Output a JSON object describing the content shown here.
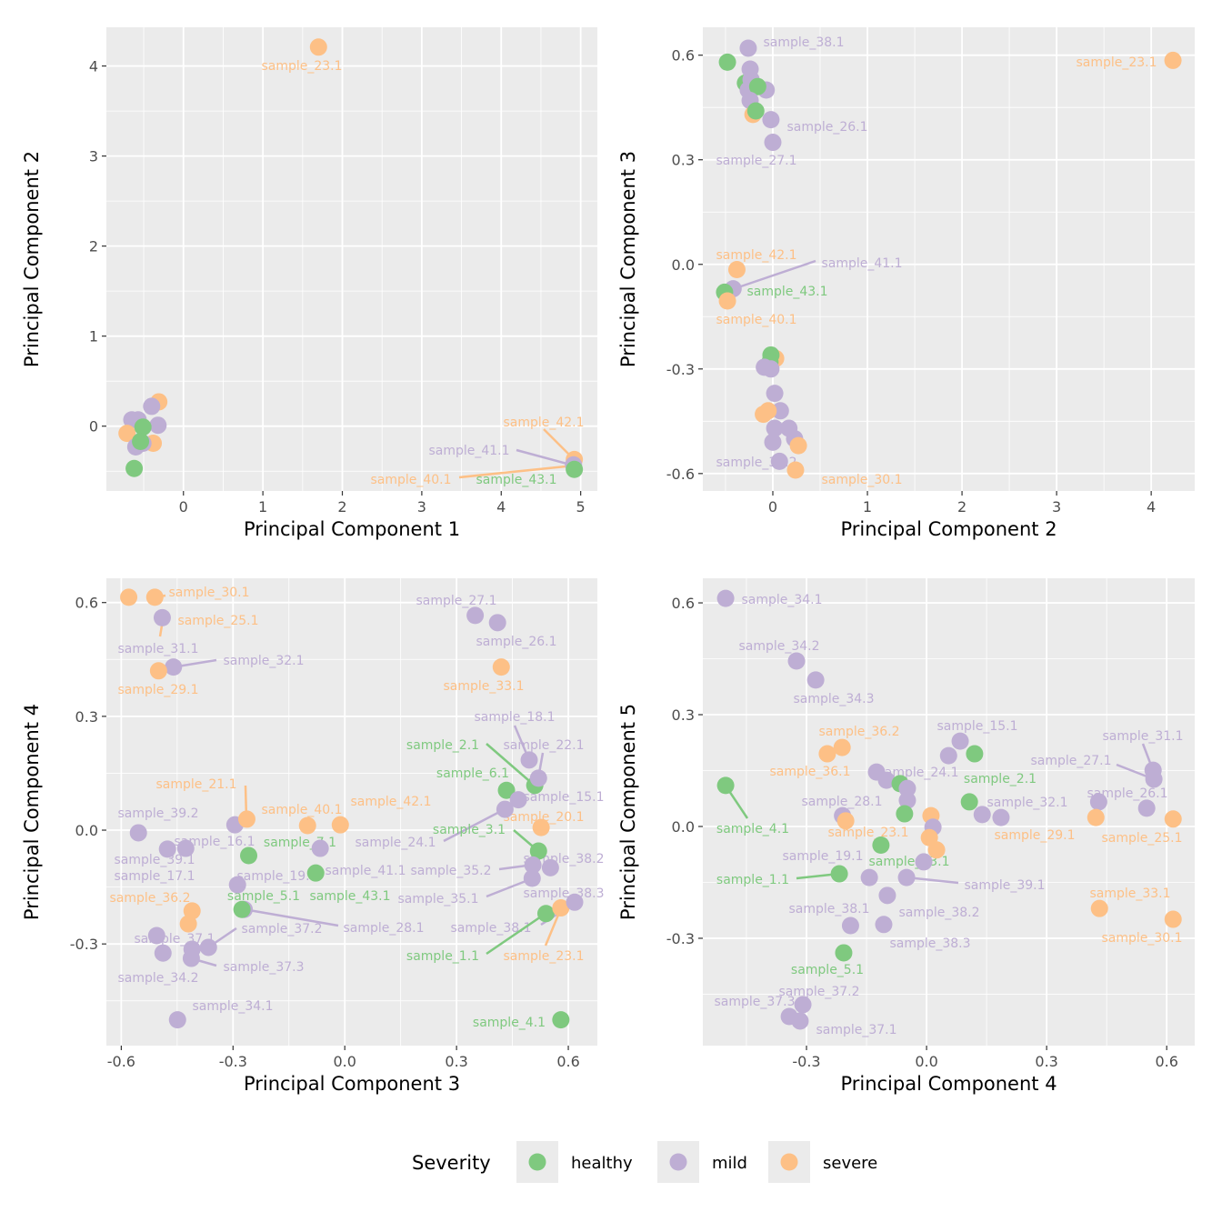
{
  "colors": {
    "healthy": "#7FC97F",
    "mild": "#BEAED4",
    "severe": "#FDC086"
  },
  "legend": {
    "title": "Severity",
    "items": [
      {
        "key": "healthy",
        "label": "healthy"
      },
      {
        "key": "mild",
        "label": "mild"
      },
      {
        "key": "severe",
        "label": "severe"
      }
    ]
  },
  "chart_data": [
    {
      "type": "scatter",
      "xlabel": "Principal Component 1",
      "ylabel": "Principal Component 2",
      "xlim": [
        -0.97,
        5.21
      ],
      "ylim": [
        -0.72,
        4.43
      ],
      "xticks": [
        0,
        1,
        2,
        3,
        4,
        5
      ],
      "xtick_labels": [
        "0",
        "1",
        "2",
        "3",
        "4",
        "5"
      ],
      "yticks": [
        0,
        1,
        2,
        3,
        4
      ],
      "ytick_labels": [
        "0",
        "1",
        "2",
        "3",
        "4"
      ],
      "points": [
        [
          1.7,
          4.21,
          "severe"
        ],
        [
          4.92,
          -0.37,
          "severe"
        ],
        [
          4.91,
          -0.43,
          "mild"
        ],
        [
          4.92,
          -0.48,
          "healthy"
        ],
        [
          -0.62,
          -0.47,
          "healthy"
        ],
        [
          -0.31,
          0.27,
          "severe"
        ],
        [
          -0.4,
          0.22,
          "mild"
        ],
        [
          -0.32,
          0.01,
          "mild"
        ],
        [
          -0.38,
          -0.19,
          "severe"
        ],
        [
          -0.65,
          0.07,
          "mild"
        ],
        [
          -0.57,
          0.07,
          "mild"
        ],
        [
          -0.71,
          -0.08,
          "severe"
        ],
        [
          -0.6,
          -0.23,
          "mild"
        ],
        [
          -0.51,
          -0.19,
          "mild"
        ],
        [
          -0.51,
          -0.01,
          "healthy"
        ],
        [
          -0.54,
          -0.17,
          "healthy"
        ]
      ],
      "labels": [
        [
          "sample_23.1",
          "severe"
        ],
        [
          "sample_42.1",
          "severe"
        ],
        [
          "sample_41.1",
          "mild"
        ],
        [
          "sample_40.1",
          "severe"
        ],
        [
          "sample_43.1",
          "healthy"
        ]
      ]
    },
    {
      "type": "scatter",
      "xlabel": "Principal Component 2",
      "ylabel": "Principal Component 3",
      "xlim": [
        -0.74,
        4.46
      ],
      "ylim": [
        -0.65,
        0.68
      ],
      "xticks": [
        0,
        1,
        2,
        3,
        4
      ],
      "xtick_labels": [
        "0",
        "1",
        "2",
        "3",
        "4"
      ],
      "yticks": [
        -0.6,
        -0.3,
        0,
        0.3,
        0.6
      ],
      "ytick_labels": [
        "-0.6",
        "-0.3",
        "0.0",
        "0.3",
        "0.6"
      ],
      "points": [
        [
          4.23,
          0.585,
          "severe"
        ],
        [
          -0.48,
          0.58,
          "healthy"
        ],
        [
          -0.26,
          0.62,
          "mild"
        ],
        [
          -0.29,
          0.52,
          "healthy"
        ],
        [
          -0.24,
          0.56,
          "mild"
        ],
        [
          -0.23,
          0.53,
          "mild"
        ],
        [
          -0.26,
          0.5,
          "mild"
        ],
        [
          -0.07,
          0.5,
          "mild"
        ],
        [
          -0.16,
          0.51,
          "healthy"
        ],
        [
          -0.24,
          0.47,
          "mild"
        ],
        [
          -0.21,
          0.43,
          "severe"
        ],
        [
          -0.18,
          0.44,
          "healthy"
        ],
        [
          -0.02,
          0.415,
          "mild"
        ],
        [
          0,
          0.35,
          "mild"
        ],
        [
          -0.38,
          -0.015,
          "severe"
        ],
        [
          -0.42,
          -0.07,
          "mild"
        ],
        [
          -0.51,
          -0.08,
          "healthy"
        ],
        [
          -0.48,
          -0.105,
          "severe"
        ],
        [
          0.03,
          -0.27,
          "severe"
        ],
        [
          -0.02,
          -0.26,
          "healthy"
        ],
        [
          -0.03,
          -0.28,
          "healthy"
        ],
        [
          -0.09,
          -0.295,
          "mild"
        ],
        [
          -0.02,
          -0.3,
          "mild"
        ],
        [
          0.02,
          -0.37,
          "mild"
        ],
        [
          0.08,
          -0.42,
          "mild"
        ],
        [
          -0.1,
          -0.43,
          "severe"
        ],
        [
          -0.05,
          -0.42,
          "severe"
        ],
        [
          0.02,
          -0.47,
          "mild"
        ],
        [
          0.17,
          -0.47,
          "mild"
        ],
        [
          0.23,
          -0.5,
          "mild"
        ],
        [
          0.27,
          -0.52,
          "severe"
        ],
        [
          0,
          -0.51,
          "mild"
        ],
        [
          0.07,
          -0.565,
          "mild"
        ],
        [
          0.24,
          -0.59,
          "severe"
        ]
      ],
      "labels": [
        [
          "sample_38.1",
          "mild"
        ],
        [
          "sample_23.1",
          "severe"
        ],
        [
          "sample_26.1",
          "mild"
        ],
        [
          "sample_27.1",
          "mild"
        ],
        [
          "sample_42.1",
          "severe"
        ],
        [
          "sample_41.1",
          "mild"
        ],
        [
          "sample_43.1",
          "healthy"
        ],
        [
          "sample_40.1",
          "severe"
        ],
        [
          "sample_39.2",
          "mild"
        ],
        [
          "sample_30.1",
          "severe"
        ]
      ]
    },
    {
      "type": "scatter",
      "xlabel": "Principal Component 3",
      "ylabel": "Principal Component 4",
      "xlim": [
        -0.64,
        0.678
      ],
      "ylim": [
        -0.568,
        0.664
      ],
      "xticks": [
        -0.6,
        -0.3,
        0,
        0.3,
        0.6
      ],
      "xtick_labels": [
        "-0.6",
        "-0.3",
        "0.0",
        "0.3",
        "0.6"
      ],
      "yticks": [
        -0.3,
        0,
        0.3,
        0.6
      ],
      "ytick_labels": [
        "-0.3",
        "0.0",
        "0.3",
        "0.6"
      ],
      "points": [
        [
          -0.58,
          0.614,
          "severe"
        ],
        [
          -0.51,
          0.614,
          "severe"
        ],
        [
          -0.49,
          0.56,
          "mild"
        ],
        [
          -0.46,
          0.43,
          "mild"
        ],
        [
          -0.5,
          0.42,
          "severe"
        ],
        [
          0.35,
          0.566,
          "mild"
        ],
        [
          0.41,
          0.547,
          "mild"
        ],
        [
          0.42,
          0.43,
          "severe"
        ],
        [
          0.495,
          0.185,
          "mild"
        ],
        [
          0.51,
          0.118,
          "healthy"
        ],
        [
          0.52,
          0.137,
          "mild"
        ],
        [
          0.434,
          0.105,
          "healthy"
        ],
        [
          0.466,
          0.08,
          "mild"
        ],
        [
          0.43,
          0.055,
          "mild"
        ],
        [
          0.527,
          0.007,
          "severe"
        ],
        [
          0.52,
          -0.055,
          "healthy"
        ],
        [
          0.505,
          -0.092,
          "mild"
        ],
        [
          0.552,
          -0.099,
          "mild"
        ],
        [
          0.503,
          -0.127,
          "mild"
        ],
        [
          0.54,
          -0.22,
          "healthy"
        ],
        [
          0.58,
          -0.205,
          "severe"
        ],
        [
          0.617,
          -0.19,
          "mild"
        ],
        [
          0.58,
          -0.5,
          "healthy"
        ],
        [
          -0.554,
          -0.007,
          "mild"
        ],
        [
          -0.476,
          -0.05,
          "mild"
        ],
        [
          -0.427,
          -0.048,
          "mild"
        ],
        [
          -0.295,
          0.014,
          "mild"
        ],
        [
          -0.263,
          0.029,
          "severe"
        ],
        [
          -0.258,
          -0.067,
          "healthy"
        ],
        [
          -0.1,
          0.012,
          "severe"
        ],
        [
          -0.012,
          0.014,
          "severe"
        ],
        [
          -0.066,
          -0.048,
          "mild"
        ],
        [
          -0.078,
          -0.113,
          "healthy"
        ],
        [
          -0.288,
          -0.144,
          "mild"
        ],
        [
          -0.27,
          -0.209,
          "mild"
        ],
        [
          -0.276,
          -0.209,
          "healthy"
        ],
        [
          -0.41,
          -0.213,
          "severe"
        ],
        [
          -0.42,
          -0.247,
          "severe"
        ],
        [
          -0.505,
          -0.278,
          "mild"
        ],
        [
          -0.488,
          -0.324,
          "mild"
        ],
        [
          -0.41,
          -0.314,
          "mild"
        ],
        [
          -0.366,
          -0.309,
          "mild"
        ],
        [
          -0.412,
          -0.338,
          "mild"
        ],
        [
          -0.449,
          -0.5,
          "mild"
        ]
      ],
      "labels": [
        [
          "sample_30.1",
          "severe"
        ],
        [
          "sample_25.1",
          "severe"
        ],
        [
          "sample_31.1",
          "mild"
        ],
        [
          "sample_32.1",
          "mild"
        ],
        [
          "sample_29.1",
          "severe"
        ],
        [
          "sample_27.1",
          "mild"
        ],
        [
          "sample_26.1",
          "mild"
        ],
        [
          "sample_33.1",
          "severe"
        ],
        [
          "sample_18.1",
          "mild"
        ],
        [
          "sample_22.1",
          "mild"
        ],
        [
          "sample_2.1",
          "healthy"
        ],
        [
          "sample_6.1",
          "healthy"
        ],
        [
          "sample_15.1",
          "mild"
        ],
        [
          "sample_24.1",
          "mild"
        ],
        [
          "sample_20.1",
          "severe"
        ],
        [
          "sample_3.1",
          "healthy"
        ],
        [
          "sample_35.2",
          "mild"
        ],
        [
          "sample_38.2",
          "mild"
        ],
        [
          "sample_35.1",
          "mild"
        ],
        [
          "sample_38.3",
          "mild"
        ],
        [
          "sample_38.1",
          "mild"
        ],
        [
          "sample_1.1",
          "healthy"
        ],
        [
          "sample_23.1",
          "severe"
        ],
        [
          "sample_4.1",
          "healthy"
        ],
        [
          "sample_39.2",
          "mild"
        ],
        [
          "sample_16.1",
          "mild"
        ],
        [
          "sample_21.1",
          "severe"
        ],
        [
          "sample_7.1",
          "healthy"
        ],
        [
          "sample_40.1",
          "severe"
        ],
        [
          "sample_42.1",
          "severe"
        ],
        [
          "sample_41.1",
          "mild"
        ],
        [
          "sample_43.1",
          "healthy"
        ],
        [
          "sample_39.1",
          "mild"
        ],
        [
          "sample_17.1",
          "mild"
        ],
        [
          "sample_19.1",
          "mild"
        ],
        [
          "sample_5.1",
          "healthy"
        ],
        [
          "sample_28.1",
          "mild"
        ],
        [
          "sample_36.2",
          "severe"
        ],
        [
          "sample_37.1",
          "mild"
        ],
        [
          "sample_34.2",
          "mild"
        ],
        [
          "sample_37.2",
          "mild"
        ],
        [
          "sample_37.3",
          "mild"
        ],
        [
          "sample_34.1",
          "mild"
        ]
      ]
    },
    {
      "type": "scatter",
      "xlabel": "Principal Component 4",
      "ylabel": "Principal Component 5",
      "xlim": [
        -0.559,
        0.67
      ],
      "ylim": [
        -0.588,
        0.666
      ],
      "xticks": [
        -0.3,
        0,
        0.3,
        0.6
      ],
      "xtick_labels": [
        "-0.3",
        "0.0",
        "0.3",
        "0.6"
      ],
      "yticks": [
        -0.3,
        0,
        0.3,
        0.6
      ],
      "ytick_labels": [
        "-0.3",
        "0.0",
        "0.3",
        "0.6"
      ],
      "points": [
        [
          -0.502,
          0.612,
          "mild"
        ],
        [
          -0.325,
          0.444,
          "mild"
        ],
        [
          -0.277,
          0.393,
          "mild"
        ],
        [
          -0.248,
          0.195,
          "severe"
        ],
        [
          -0.211,
          0.212,
          "severe"
        ],
        [
          -0.502,
          0.11,
          "healthy"
        ],
        [
          -0.125,
          0.146,
          "mild"
        ],
        [
          -0.1,
          0.124,
          "mild"
        ],
        [
          -0.066,
          0.115,
          "healthy"
        ],
        [
          -0.048,
          0.102,
          "mild"
        ],
        [
          -0.048,
          0.07,
          "mild"
        ],
        [
          -0.055,
          0.034,
          "healthy"
        ],
        [
          -0.21,
          0.029,
          "mild"
        ],
        [
          -0.202,
          0.015,
          "severe"
        ],
        [
          0.084,
          0.229,
          "mild"
        ],
        [
          0.055,
          0.19,
          "mild"
        ],
        [
          0.12,
          0.195,
          "healthy"
        ],
        [
          0.107,
          0.066,
          "healthy"
        ],
        [
          0.139,
          0.032,
          "mild"
        ],
        [
          0.186,
          0.024,
          "mild"
        ],
        [
          0.011,
          0.029,
          "severe"
        ],
        [
          0.016,
          -0.002,
          "mild"
        ],
        [
          0.007,
          -0.03,
          "severe"
        ],
        [
          0.025,
          -0.063,
          "severe"
        ],
        [
          -0.007,
          -0.095,
          "mild"
        ],
        [
          -0.05,
          -0.137,
          "mild"
        ],
        [
          -0.114,
          -0.05,
          "healthy"
        ],
        [
          -0.218,
          -0.127,
          "healthy"
        ],
        [
          -0.143,
          -0.137,
          "mild"
        ],
        [
          -0.098,
          -0.185,
          "mild"
        ],
        [
          -0.19,
          -0.266,
          "mild"
        ],
        [
          -0.107,
          -0.263,
          "mild"
        ],
        [
          -0.207,
          -0.339,
          "healthy"
        ],
        [
          -0.309,
          -0.478,
          "mild"
        ],
        [
          -0.343,
          -0.51,
          "mild"
        ],
        [
          -0.316,
          -0.522,
          "mild"
        ],
        [
          0.43,
          0.066,
          "mild"
        ],
        [
          0.55,
          0.049,
          "mild"
        ],
        [
          0.566,
          0.151,
          "mild"
        ],
        [
          0.568,
          0.127,
          "mild"
        ],
        [
          0.423,
          0.024,
          "severe"
        ],
        [
          0.616,
          0.02,
          "severe"
        ],
        [
          0.432,
          -0.22,
          "severe"
        ],
        [
          0.616,
          -0.249,
          "severe"
        ]
      ],
      "labels": [
        [
          "sample_34.1",
          "mild"
        ],
        [
          "sample_34.2",
          "mild"
        ],
        [
          "sample_34.3",
          "mild"
        ],
        [
          "sample_36.2",
          "severe"
        ],
        [
          "sample_36.1",
          "severe"
        ],
        [
          "sample_4.1",
          "healthy"
        ],
        [
          "sample_24.1",
          "mild"
        ],
        [
          "sample_28.1",
          "mild"
        ],
        [
          "sample_23.1",
          "severe"
        ],
        [
          "sample_15.1",
          "mild"
        ],
        [
          "sample_2.1",
          "healthy"
        ],
        [
          "sample_32.1",
          "mild"
        ],
        [
          "sample_29.1",
          "severe"
        ],
        [
          "sample_39.1",
          "mild"
        ],
        [
          "sample_43.1",
          "healthy"
        ],
        [
          "sample_1.1",
          "healthy"
        ],
        [
          "sample_19.1",
          "mild"
        ],
        [
          "sample_38.1",
          "mild"
        ],
        [
          "sample_38.2",
          "mild"
        ],
        [
          "sample_38.3",
          "mild"
        ],
        [
          "sample_5.1",
          "healthy"
        ],
        [
          "sample_37.2",
          "mild"
        ],
        [
          "sample_37.3",
          "mild"
        ],
        [
          "sample_37.1",
          "mild"
        ],
        [
          "sample_26.1",
          "mild"
        ],
        [
          "sample_31.1",
          "mild"
        ],
        [
          "sample_27.1",
          "mild"
        ],
        [
          "sample_25.1",
          "severe"
        ],
        [
          "sample_33.1",
          "severe"
        ],
        [
          "sample_30.1",
          "severe"
        ]
      ]
    }
  ]
}
